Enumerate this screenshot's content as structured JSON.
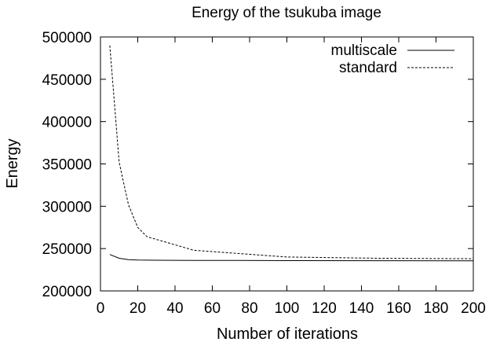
{
  "chart_data": {
    "type": "line",
    "title": "Energy of the tsukuba image",
    "xlabel": "Number of iterations",
    "ylabel": "Energy",
    "xlim": [
      0,
      200
    ],
    "ylim": [
      200000,
      500000
    ],
    "xticks": [
      0,
      20,
      40,
      60,
      80,
      100,
      120,
      140,
      160,
      180,
      200
    ],
    "yticks": [
      200000,
      250000,
      300000,
      350000,
      400000,
      450000,
      500000
    ],
    "grid": false,
    "legend_position": "top-right",
    "series": [
      {
        "name": "multiscale",
        "style": "solid",
        "x": [
          5,
          10,
          15,
          20,
          25,
          30,
          40,
          50,
          75,
          100,
          150,
          200
        ],
        "y": [
          243000,
          238500,
          237000,
          236500,
          236300,
          236200,
          236100,
          236000,
          235900,
          235800,
          235700,
          235600
        ]
      },
      {
        "name": "standard",
        "style": "dashed",
        "x": [
          5,
          10,
          15,
          20,
          25,
          50,
          100,
          150,
          200
        ],
        "y": [
          490000,
          352000,
          302000,
          275000,
          264000,
          248000,
          240000,
          238500,
          238000
        ]
      }
    ]
  }
}
